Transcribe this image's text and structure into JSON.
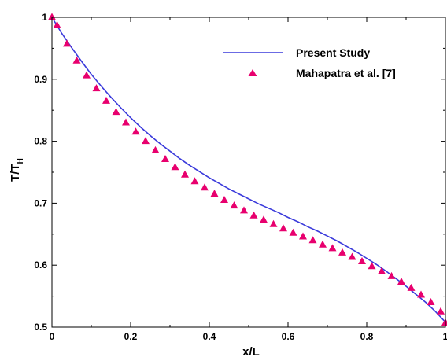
{
  "chart_data": {
    "type": "line+scatter",
    "title": "",
    "xlabel": "x/L",
    "ylabel_main": "T/T",
    "ylabel_sub": "H",
    "xlim": [
      0,
      1
    ],
    "ylim": [
      0.5,
      1.0
    ],
    "xticks": [
      "0",
      "0.2",
      "0.4",
      "0.6",
      "0.8",
      "1"
    ],
    "yticks": [
      "0.5",
      "0.6",
      "0.7",
      "0.8",
      "0.9",
      "1"
    ],
    "xtick_values": [
      0,
      0.2,
      0.4,
      0.6,
      0.8,
      1.0
    ],
    "ytick_values": [
      0.5,
      0.6,
      0.7,
      0.8,
      0.9,
      1.0
    ],
    "legend_position": "top-right",
    "series": [
      {
        "name": "Present Study",
        "kind": "line",
        "color": "#3a3adb",
        "x": [
          0,
          0.025,
          0.05,
          0.075,
          0.1,
          0.125,
          0.15,
          0.175,
          0.2,
          0.225,
          0.25,
          0.275,
          0.3,
          0.325,
          0.35,
          0.375,
          0.4,
          0.425,
          0.45,
          0.475,
          0.5,
          0.525,
          0.55,
          0.575,
          0.6,
          0.625,
          0.65,
          0.675,
          0.7,
          0.725,
          0.75,
          0.775,
          0.8,
          0.825,
          0.85,
          0.875,
          0.9,
          0.925,
          0.95,
          0.975,
          1.0
        ],
        "y": [
          1.0,
          0.974,
          0.951,
          0.929,
          0.908,
          0.889,
          0.871,
          0.854,
          0.838,
          0.823,
          0.809,
          0.796,
          0.784,
          0.772,
          0.761,
          0.751,
          0.741,
          0.732,
          0.723,
          0.715,
          0.707,
          0.699,
          0.692,
          0.685,
          0.677,
          0.67,
          0.662,
          0.655,
          0.647,
          0.639,
          0.63,
          0.621,
          0.611,
          0.601,
          0.59,
          0.578,
          0.566,
          0.553,
          0.54,
          0.525,
          0.508
        ]
      },
      {
        "name": "Mahapatra et al. [7]",
        "kind": "scatter",
        "marker": "triangle",
        "color": "#e8006e",
        "x": [
          0,
          0.013,
          0.038,
          0.063,
          0.088,
          0.113,
          0.138,
          0.163,
          0.188,
          0.213,
          0.238,
          0.263,
          0.288,
          0.313,
          0.338,
          0.363,
          0.388,
          0.413,
          0.438,
          0.463,
          0.488,
          0.513,
          0.538,
          0.563,
          0.588,
          0.613,
          0.638,
          0.663,
          0.688,
          0.713,
          0.738,
          0.763,
          0.788,
          0.813,
          0.838,
          0.863,
          0.888,
          0.913,
          0.938,
          0.963,
          0.988,
          1.0
        ],
        "y": [
          1.0,
          0.987,
          0.957,
          0.93,
          0.906,
          0.885,
          0.865,
          0.847,
          0.83,
          0.815,
          0.8,
          0.785,
          0.771,
          0.758,
          0.746,
          0.735,
          0.725,
          0.715,
          0.705,
          0.696,
          0.688,
          0.68,
          0.673,
          0.666,
          0.659,
          0.652,
          0.646,
          0.64,
          0.633,
          0.627,
          0.62,
          0.613,
          0.606,
          0.598,
          0.59,
          0.582,
          0.573,
          0.563,
          0.552,
          0.54,
          0.525,
          0.507
        ]
      }
    ]
  }
}
